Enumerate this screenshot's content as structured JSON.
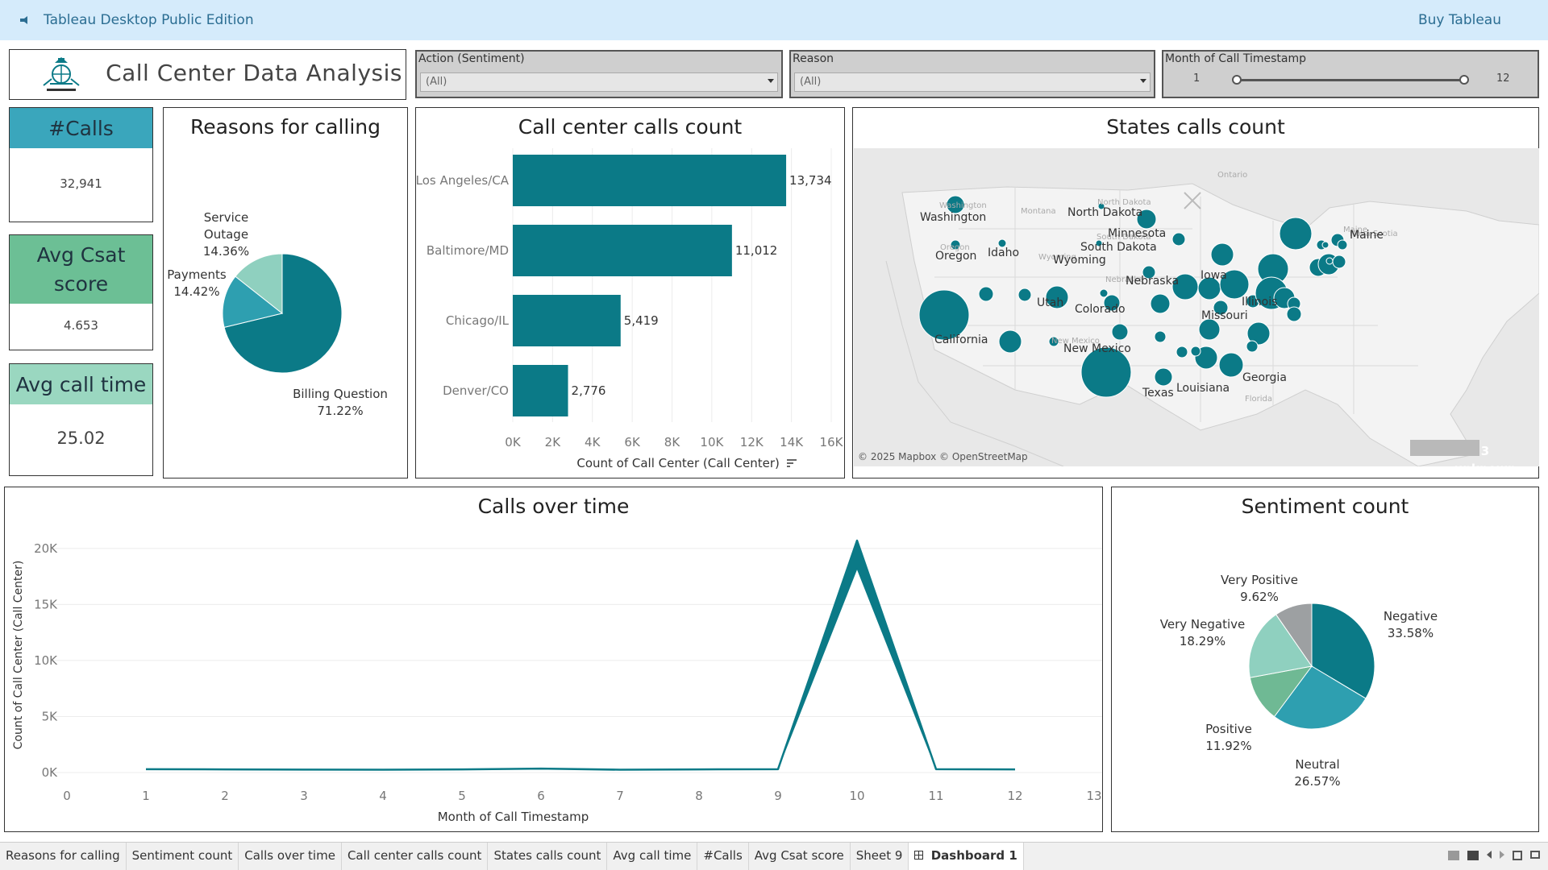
{
  "topbar": {
    "title": "Tableau Desktop Public Edition",
    "buy": "Buy Tableau"
  },
  "header": {
    "title": "Call Center Data Analysis"
  },
  "filters": {
    "action": {
      "label": "Action (Sentiment)",
      "value": "(All)"
    },
    "reason": {
      "label": "Reason",
      "value": "(All)"
    },
    "month": {
      "label": "Month of Call Timestamp",
      "min": "1",
      "max": "12"
    }
  },
  "kpis": {
    "calls": {
      "label": "#Calls",
      "value": "32,941"
    },
    "csat": {
      "label": "Avg Csat score",
      "value": "4.653"
    },
    "time": {
      "label": "Avg call time",
      "value": "25.02"
    }
  },
  "reasons": {
    "title": "Reasons for calling",
    "labels": [
      {
        "name": "Service Outage",
        "pct": "14.36%"
      },
      {
        "name": "Payments",
        "pct": "14.42%"
      },
      {
        "name": "Billing Question",
        "pct": "71.22%"
      }
    ]
  },
  "calls_bar": {
    "title": "Call center calls count",
    "xlabel": "Count of Call Center (Call Center)"
  },
  "states": {
    "title": "States calls count",
    "attribution": "© 2025 Mapbox © OpenStreetMap",
    "unknown": "3 unknown",
    "faint_labels": [
      "Ontario",
      "Montana",
      "North Dakota",
      "South Dakota",
      "Wyoming",
      "New Mexico",
      "Florida",
      "Nova Scotia",
      "Maine",
      "Oregon",
      "Washington",
      "Nebraska"
    ],
    "labels": [
      "Washington",
      "North Dakota",
      "Minnesota",
      "Maine",
      "Oregon",
      "Idaho",
      "South Dakota",
      "Wyoming",
      "Nebraska",
      "Iowa",
      "Utah",
      "Colorado",
      "Illinois",
      "California",
      "Missouri",
      "New Mexico",
      "Georgia",
      "Texas",
      "Louisiana"
    ]
  },
  "timeline": {
    "title": "Calls over time",
    "xlabel": "Month of Call Timestamp",
    "ylabel": "Count of Call Center (Call Center)"
  },
  "sentiment": {
    "title": "Sentiment count",
    "labels": [
      {
        "name": "Very Positive",
        "pct": "9.62%"
      },
      {
        "name": "Negative",
        "pct": "33.58%"
      },
      {
        "name": "Very Negative",
        "pct": "18.29%"
      },
      {
        "name": "Positive",
        "pct": "11.92%"
      },
      {
        "name": "Neutral",
        "pct": "26.57%"
      }
    ]
  },
  "tabs": [
    "Reasons for calling",
    "Sentiment count",
    "Calls over time",
    "Call center calls count",
    "States calls count",
    "Avg call time",
    "#Calls",
    "Avg Csat score",
    "Sheet 9",
    "Dashboard 1"
  ],
  "colors": {
    "teal_dark": "#0b7a87",
    "teal_mid": "#2e9fb0",
    "teal_light": "#8fd0bf",
    "kpi_calls": "#3aa6bc",
    "kpi_csat": "#6cbf95",
    "kpi_time": "#9ad7c0"
  },
  "chart_data": [
    {
      "type": "pie",
      "title": "Reasons for calling",
      "categories": [
        "Billing Question",
        "Payments",
        "Service Outage"
      ],
      "values": [
        71.22,
        14.42,
        14.36
      ]
    },
    {
      "type": "bar",
      "title": "Call center calls count",
      "categories": [
        "Los Angeles/CA",
        "Baltimore/MD",
        "Chicago/IL",
        "Denver/CO"
      ],
      "values": [
        13734,
        11012,
        5419,
        2776
      ],
      "value_labels": [
        "13,734",
        "11,012",
        "5,419",
        "2,776"
      ],
      "xlabel": "Count of Call Center (Call Center)",
      "xlim": [
        0,
        16000
      ],
      "xticks": [
        "0K",
        "2K",
        "4K",
        "6K",
        "8K",
        "10K",
        "12K",
        "14K",
        "16K"
      ],
      "orientation": "horizontal"
    },
    {
      "type": "area",
      "title": "Calls over time",
      "x": [
        1,
        2,
        3,
        4,
        5,
        6,
        7,
        8,
        9,
        10,
        11,
        12
      ],
      "series": [
        {
          "values": [
            300,
            280,
            260,
            250,
            280,
            350,
            250,
            280,
            300,
            20700,
            300,
            280
          ]
        }
      ],
      "xlabel": "Month of Call Timestamp",
      "ylabel": "Count of Call Center (Call Center)",
      "xlim": [
        0,
        13
      ],
      "ylim": [
        0,
        22000
      ],
      "yticks": [
        "0K",
        "5K",
        "10K",
        "15K",
        "20K"
      ],
      "xticks": [
        "0",
        "1",
        "2",
        "3",
        "4",
        "5",
        "6",
        "7",
        "8",
        "9",
        "10",
        "11",
        "12",
        "13"
      ]
    },
    {
      "type": "pie",
      "title": "Sentiment count",
      "categories": [
        "Negative",
        "Neutral",
        "Positive",
        "Very Negative",
        "Very Positive"
      ],
      "values": [
        33.58,
        26.57,
        11.92,
        18.29,
        9.62
      ]
    }
  ]
}
